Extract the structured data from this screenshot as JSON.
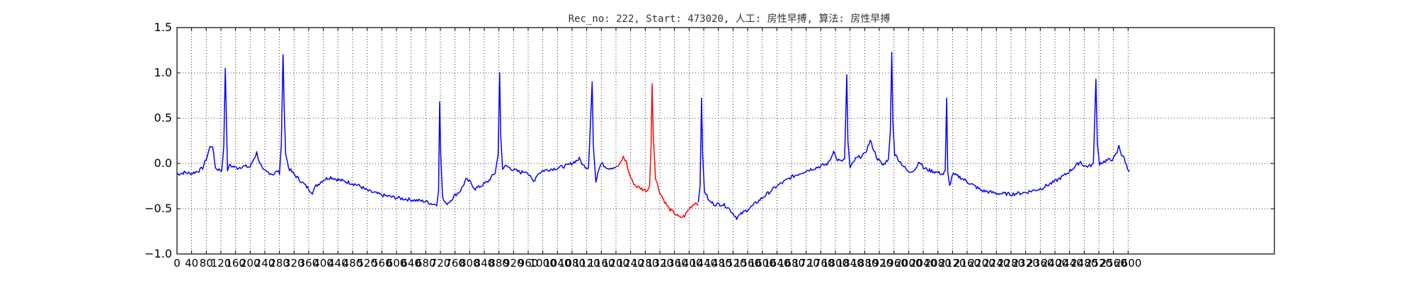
{
  "chart_data": {
    "type": "line",
    "title": "Rec_no: 222, Start: 473020, 人工: 房性早搏, 算法: 房性早搏",
    "xlabel": "",
    "ylabel": "",
    "xlim": [
      0,
      3000
    ],
    "ylim": [
      -1.0,
      1.5
    ],
    "grid": true,
    "x_ticks": [
      0,
      40,
      80,
      120,
      160,
      200,
      240,
      280,
      320,
      360,
      400,
      440,
      480,
      520,
      560,
      600,
      640,
      680,
      720,
      760,
      800,
      840,
      880,
      920,
      960,
      1000,
      1040,
      1080,
      1120,
      1160,
      1200,
      1240,
      1280,
      1320,
      1360,
      1400,
      1440,
      1480,
      1520,
      1560,
      1600,
      1640,
      1680,
      1720,
      1760,
      1800,
      1840,
      1880,
      1920,
      1960,
      2000,
      2040,
      2080,
      2120,
      2160,
      2200,
      2240,
      2280,
      2320,
      2360,
      2400,
      2440,
      2480,
      2520,
      2560,
      2600
    ],
    "y_ticks": [
      -1.0,
      -0.5,
      0.0,
      0.5,
      1.0,
      1.5
    ],
    "y_tick_labels": [
      "−1.0",
      "−0.5",
      "0.0",
      "0.5",
      "1.0",
      "1.5"
    ],
    "series": [
      {
        "color": "#0000ff",
        "points": [
          [
            0,
            -0.12
          ],
          [
            20,
            -0.1
          ],
          [
            40,
            -0.11
          ],
          [
            60,
            -0.08
          ],
          [
            70,
            -0.05
          ],
          [
            80,
            0.05
          ],
          [
            90,
            0.18
          ],
          [
            95,
            0.2
          ],
          [
            100,
            0.12
          ],
          [
            105,
            -0.05
          ],
          [
            115,
            -0.07
          ],
          [
            122,
            -0.08
          ],
          [
            128,
            0.2
          ],
          [
            132,
            1.05
          ],
          [
            135,
            0.5
          ],
          [
            138,
            -0.1
          ],
          [
            142,
            -0.02
          ],
          [
            150,
            -0.03
          ],
          [
            165,
            -0.05
          ],
          [
            180,
            -0.03
          ],
          [
            200,
            -0.04
          ],
          [
            210,
            0.05
          ],
          [
            218,
            0.12
          ],
          [
            225,
            0.02
          ],
          [
            235,
            -0.08
          ],
          [
            250,
            -0.1
          ],
          [
            265,
            -0.12
          ],
          [
            275,
            -0.08
          ],
          [
            280,
            -0.12
          ],
          [
            285,
            0.2
          ],
          [
            290,
            1.2
          ],
          [
            293,
            0.6
          ],
          [
            297,
            0.12
          ],
          [
            305,
            -0.05
          ],
          [
            320,
            -0.12
          ],
          [
            340,
            -0.2
          ],
          [
            360,
            -0.28
          ],
          [
            370,
            -0.32
          ],
          [
            380,
            -0.25
          ],
          [
            400,
            -0.18
          ],
          [
            420,
            -0.15
          ],
          [
            440,
            -0.18
          ],
          [
            460,
            -0.2
          ],
          [
            480,
            -0.22
          ],
          [
            500,
            -0.25
          ],
          [
            520,
            -0.3
          ],
          [
            560,
            -0.35
          ],
          [
            600,
            -0.38
          ],
          [
            640,
            -0.4
          ],
          [
            680,
            -0.42
          ],
          [
            700,
            -0.45
          ],
          [
            710,
            -0.45
          ],
          [
            715,
            -0.3
          ],
          [
            718,
            0.68
          ],
          [
            721,
            0.1
          ],
          [
            726,
            -0.38
          ],
          [
            735,
            -0.45
          ],
          [
            745,
            -0.42
          ],
          [
            760,
            -0.35
          ],
          [
            775,
            -0.3
          ],
          [
            790,
            -0.18
          ],
          [
            800,
            -0.2
          ],
          [
            815,
            -0.28
          ],
          [
            830,
            -0.25
          ],
          [
            850,
            -0.2
          ],
          [
            870,
            -0.1
          ],
          [
            878,
            0.1
          ],
          [
            882,
            1.0
          ],
          [
            885,
            0.3
          ],
          [
            890,
            -0.05
          ],
          [
            900,
            -0.03
          ],
          [
            920,
            -0.07
          ],
          [
            940,
            -0.1
          ],
          [
            955,
            -0.08
          ],
          [
            965,
            -0.15
          ],
          [
            975,
            -0.2
          ],
          [
            985,
            -0.12
          ],
          [
            1000,
            -0.08
          ],
          [
            1040,
            -0.05
          ],
          [
            1070,
            -0.02
          ],
          [
            1100,
            0.05
          ],
          [
            1110,
            -0.02
          ],
          [
            1125,
            -0.05
          ],
          [
            1135,
            0.9
          ],
          [
            1138,
            0.2
          ],
          [
            1145,
            -0.2
          ],
          [
            1150,
            -0.1
          ],
          [
            1160,
            0.0
          ],
          [
            1170,
            -0.03
          ],
          [
            1180,
            -0.05
          ],
          [
            1200,
            -0.04
          ]
        ]
      },
      {
        "color": "#ff0000",
        "points": [
          [
            1200,
            -0.04
          ],
          [
            1210,
            -0.02
          ],
          [
            1220,
            0.07
          ],
          [
            1228,
            0.02
          ],
          [
            1235,
            -0.1
          ],
          [
            1245,
            -0.2
          ],
          [
            1255,
            -0.25
          ],
          [
            1270,
            -0.28
          ],
          [
            1285,
            -0.3
          ],
          [
            1292,
            -0.25
          ],
          [
            1296,
            0.2
          ],
          [
            1299,
            0.88
          ],
          [
            1302,
            0.3
          ],
          [
            1308,
            -0.15
          ],
          [
            1318,
            -0.3
          ],
          [
            1330,
            -0.4
          ],
          [
            1345,
            -0.5
          ],
          [
            1360,
            -0.55
          ],
          [
            1375,
            -0.6
          ],
          [
            1388,
            -0.58
          ],
          [
            1400,
            -0.5
          ],
          [
            1412,
            -0.45
          ],
          [
            1420,
            -0.43
          ],
          [
            1425,
            -0.45
          ]
        ]
      },
      {
        "color": "#0000ff",
        "points": [
          [
            1425,
            -0.45
          ],
          [
            1430,
            -0.25
          ],
          [
            1434,
            0.72
          ],
          [
            1437,
            0.1
          ],
          [
            1442,
            -0.3
          ],
          [
            1455,
            -0.42
          ],
          [
            1470,
            -0.45
          ],
          [
            1490,
            -0.45
          ],
          [
            1505,
            -0.48
          ],
          [
            1520,
            -0.55
          ],
          [
            1530,
            -0.6
          ],
          [
            1545,
            -0.55
          ],
          [
            1570,
            -0.48
          ],
          [
            1600,
            -0.38
          ],
          [
            1640,
            -0.25
          ],
          [
            1680,
            -0.15
          ],
          [
            1720,
            -0.08
          ],
          [
            1760,
            -0.03
          ],
          [
            1780,
            0.0
          ],
          [
            1790,
            0.08
          ],
          [
            1795,
            0.15
          ],
          [
            1802,
            0.05
          ],
          [
            1815,
            0.02
          ],
          [
            1825,
            0.05
          ],
          [
            1831,
            0.98
          ],
          [
            1834,
            0.25
          ],
          [
            1840,
            -0.05
          ],
          [
            1855,
            0.05
          ],
          [
            1880,
            0.1
          ],
          [
            1895,
            0.25
          ],
          [
            1905,
            0.15
          ],
          [
            1915,
            0.05
          ],
          [
            1930,
            -0.02
          ],
          [
            1945,
            0.05
          ],
          [
            1950,
            0.35
          ],
          [
            1954,
            1.23
          ],
          [
            1957,
            0.45
          ],
          [
            1962,
            0.1
          ],
          [
            1975,
            0.03
          ],
          [
            1990,
            -0.05
          ],
          [
            2000,
            -0.1
          ],
          [
            2010,
            -0.08
          ],
          [
            2020,
            -0.05
          ],
          [
            2030,
            0.03
          ],
          [
            2040,
            -0.05
          ],
          [
            2060,
            -0.08
          ],
          [
            2080,
            -0.1
          ],
          [
            2095,
            -0.12
          ],
          [
            2100,
            -0.08
          ],
          [
            2104,
            0.72
          ],
          [
            2107,
            -0.1
          ],
          [
            2112,
            -0.25
          ],
          [
            2120,
            -0.12
          ],
          [
            2140,
            -0.15
          ],
          [
            2160,
            -0.2
          ],
          [
            2180,
            -0.25
          ],
          [
            2200,
            -0.3
          ],
          [
            2240,
            -0.33
          ],
          [
            2280,
            -0.34
          ],
          [
            2320,
            -0.32
          ],
          [
            2360,
            -0.28
          ],
          [
            2400,
            -0.2
          ],
          [
            2430,
            -0.12
          ],
          [
            2450,
            -0.05
          ],
          [
            2470,
            0.02
          ],
          [
            2480,
            -0.03
          ],
          [
            2495,
            -0.03
          ],
          [
            2505,
            0.0
          ],
          [
            2512,
            0.93
          ],
          [
            2516,
            0.2
          ],
          [
            2522,
            0.0
          ],
          [
            2540,
            0.03
          ],
          [
            2560,
            0.05
          ],
          [
            2570,
            0.12
          ],
          [
            2575,
            0.2
          ],
          [
            2582,
            0.1
          ],
          [
            2590,
            0.05
          ],
          [
            2598,
            -0.05
          ],
          [
            2605,
            -0.08
          ]
        ]
      }
    ]
  }
}
